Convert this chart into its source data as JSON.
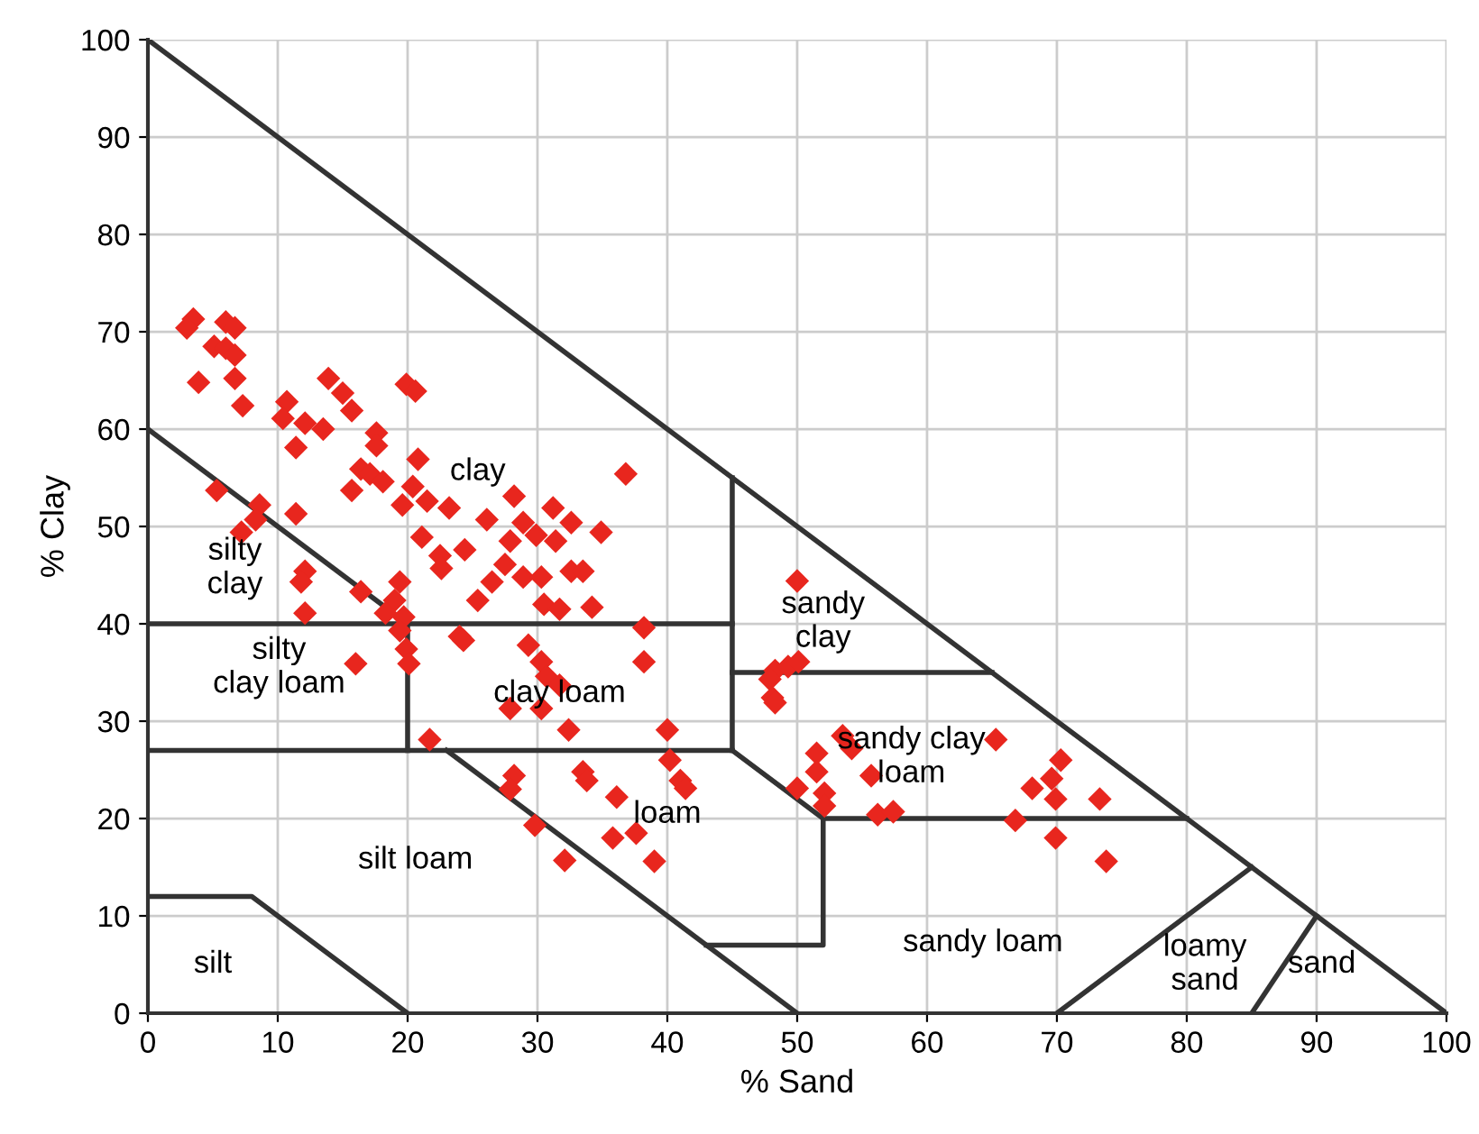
{
  "chart_data": {
    "type": "scatter",
    "xlabel": "% Sand",
    "ylabel": "% Clay",
    "xlim": [
      0,
      100
    ],
    "ylim": [
      0,
      100
    ],
    "xticks": [
      0,
      10,
      20,
      30,
      40,
      50,
      60,
      70,
      80,
      90,
      100
    ],
    "yticks": [
      0,
      10,
      20,
      30,
      40,
      50,
      60,
      70,
      80,
      90,
      100
    ],
    "grid": true,
    "legend": false,
    "series": [
      {
        "marker": "diamond",
        "color": "#e8261e",
        "x": [
          3.5,
          3,
          6,
          6.7,
          5.1,
          6,
          6.7,
          3.9,
          6.7,
          7.3,
          13.9,
          15,
          15.7,
          10.7,
          10.4,
          12.1,
          13.5,
          11.4,
          17.6,
          17.6,
          19.9,
          20.6,
          20.8,
          16.4,
          17.1,
          18.1,
          15.7,
          20.4,
          21.5,
          23.2,
          5.3,
          8.6,
          8.3,
          7.2,
          11.4,
          21.1,
          22.5,
          22.6,
          26.1,
          12.1,
          11.8,
          12.1,
          16.4,
          19.4,
          19,
          18.3,
          19.7,
          19.4,
          19.9,
          20.1,
          16,
          24,
          36.8,
          28.2,
          31.2,
          32.6,
          34.9,
          28.9,
          29.9,
          24.4,
          27.5,
          28.9,
          30.3,
          31.4,
          32.6,
          33.5,
          26.5,
          25.4,
          30.5,
          31.7,
          34.2,
          19.6,
          27.9,
          38.2,
          38.2,
          24.3,
          29.3,
          30.3,
          30.7,
          31.7,
          27.9,
          30.3,
          32.4,
          40,
          40.2,
          21.7,
          28.2,
          27.9,
          33.5,
          33.8,
          36.1,
          29.8,
          35.8,
          37.6,
          32.1,
          39,
          41,
          41.4,
          50,
          48.3,
          49.3,
          50.1,
          47.9,
          48.1,
          48.3,
          53.5,
          54.2,
          51.5,
          51.5,
          50,
          52.1,
          52.1,
          55.7,
          56.2,
          57.4,
          65.3,
          70.3,
          69.6,
          68.1,
          69.9,
          73.3,
          66.8,
          69.9,
          73.8
        ],
        "values": [
          71.3,
          70.4,
          71,
          70.4,
          68.5,
          68.3,
          67.6,
          64.8,
          65.2,
          62.4,
          65.2,
          63.7,
          61.9,
          62.8,
          61.1,
          60.6,
          60,
          58.1,
          59.6,
          58.3,
          64.6,
          63.9,
          56.9,
          55.9,
          55.4,
          54.6,
          53.7,
          54.1,
          52.6,
          51.9,
          53.7,
          52.2,
          50.7,
          49.4,
          51.3,
          48.9,
          47,
          45.7,
          50.7,
          45.4,
          44.3,
          41.1,
          43.3,
          44.3,
          42.4,
          41.1,
          40.7,
          39.3,
          37.4,
          35.9,
          35.9,
          38.7,
          55.4,
          53.1,
          51.9,
          50.4,
          49.4,
          50.4,
          49.1,
          47.6,
          46.1,
          44.8,
          44.8,
          48.5,
          45.4,
          45.4,
          44.3,
          42.4,
          42,
          41.5,
          41.7,
          52.2,
          48.5,
          39.6,
          36.1,
          38.3,
          37.8,
          36.1,
          34.6,
          33.7,
          31.3,
          31.3,
          29.1,
          29.1,
          26,
          28.1,
          24.4,
          23,
          24.8,
          23.9,
          22.2,
          19.3,
          18,
          18.5,
          15.7,
          15.6,
          23.9,
          23.1,
          44.4,
          35.2,
          35.6,
          36.1,
          34.3,
          32.4,
          31.9,
          28.5,
          27.2,
          26.7,
          24.8,
          23.1,
          22.6,
          21.3,
          24.4,
          20.4,
          20.7,
          28.1,
          26,
          24.1,
          23.1,
          22,
          22,
          19.8,
          18,
          15.6
        ]
      },
      {
        "type": "line",
        "color": "#333333",
        "x": [
          0,
          100
        ],
        "values": [
          100,
          0
        ]
      },
      {
        "type": "line",
        "color": "#333333",
        "x": [
          0,
          20
        ],
        "values": [
          60,
          40
        ]
      },
      {
        "type": "line",
        "color": "#333333",
        "x": [
          0,
          45
        ],
        "values": [
          40,
          40
        ]
      },
      {
        "type": "line",
        "color": "#333333",
        "x": [
          0,
          45
        ],
        "values": [
          27,
          27
        ]
      },
      {
        "type": "line",
        "color": "#333333",
        "x": [
          20,
          20
        ],
        "values": [
          27,
          40
        ]
      },
      {
        "type": "line",
        "color": "#333333",
        "x": [
          45,
          45
        ],
        "values": [
          27,
          55
        ]
      },
      {
        "type": "line",
        "color": "#333333",
        "x": [
          45,
          65
        ],
        "values": [
          35,
          35
        ]
      },
      {
        "type": "line",
        "color": "#333333",
        "x": [
          23,
          50
        ],
        "values": [
          27,
          0
        ]
      },
      {
        "type": "line",
        "color": "#333333",
        "x": [
          45,
          52,
          80
        ],
        "values": [
          27,
          20,
          20
        ]
      },
      {
        "type": "line",
        "color": "#333333",
        "x": [
          52,
          52,
          43
        ],
        "values": [
          20,
          7,
          7
        ]
      },
      {
        "type": "line",
        "color": "#333333",
        "x": [
          0,
          8,
          20
        ],
        "values": [
          12,
          12,
          0
        ]
      },
      {
        "type": "line",
        "color": "#333333",
        "x": [
          70,
          85
        ],
        "values": [
          0,
          15
        ]
      },
      {
        "type": "line",
        "color": "#333333",
        "x": [
          85,
          90
        ],
        "values": [
          0,
          10
        ]
      }
    ],
    "annotations": [
      "clay",
      "silty\nclay",
      "silty\nclay loam",
      "clay loam",
      "loam",
      "silt loam",
      "silt",
      "sandy\nclay",
      "sandy clay\nloam",
      "sandy loam",
      "loamy\nsand",
      "sand"
    ]
  }
}
